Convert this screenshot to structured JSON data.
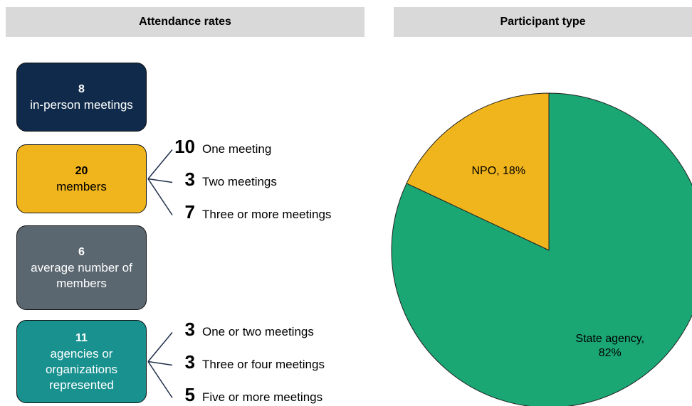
{
  "left": {
    "title": "Attendance rates",
    "stats": [
      {
        "value": 8,
        "label": "in-person meetings",
        "color": "#0f2a4a",
        "breakdown": []
      },
      {
        "value": 20,
        "label": "members",
        "color": "#f0b41c",
        "breakdown": [
          {
            "value": 10,
            "label": "One meeting"
          },
          {
            "value": 3,
            "label": "Two meetings"
          },
          {
            "value": 7,
            "label": "Three or more meetings"
          }
        ]
      },
      {
        "value": 6,
        "label": "average number of members",
        "color": "#5b6770",
        "breakdown": []
      },
      {
        "value": 11,
        "label": "agencies or organizations represented",
        "color": "#18918f",
        "breakdown": [
          {
            "value": 3,
            "label": "One or two meetings"
          },
          {
            "value": 3,
            "label": "Three or four meetings"
          },
          {
            "value": 5,
            "label": "Five or more meetings"
          }
        ]
      }
    ]
  },
  "chart_data": {
    "type": "pie",
    "title": "Participant type",
    "values": [
      18,
      82
    ],
    "value_labels": [
      "NPO, 18%",
      "State agency, 82%"
    ],
    "colors": [
      "#f0b41c",
      "#1aa774"
    ]
  }
}
